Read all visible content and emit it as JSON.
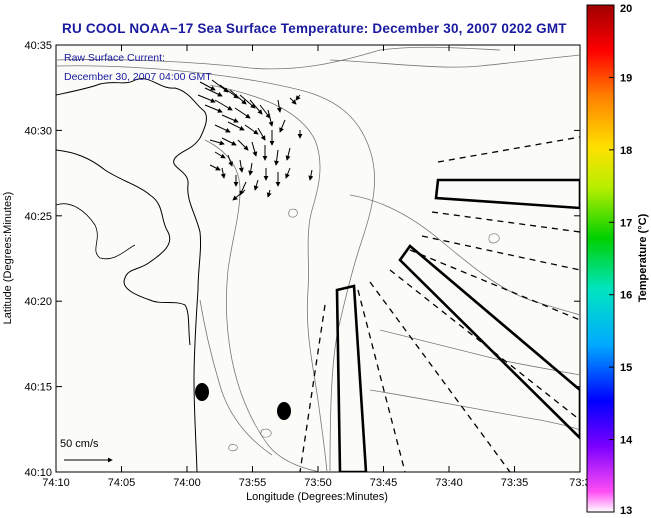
{
  "title": "RU COOL  NOAA−17  Sea Surface Temperature:  December 30, 2007 0202 GMT",
  "info": {
    "line1": "Raw Surface Current:",
    "line2": "December 30, 2007 04:00 GMT"
  },
  "axes": {
    "xlabel": "Longitude (Degrees:Minutes)",
    "ylabel": "Latitude (Degrees:Minutes)",
    "xticks": [
      "74:10",
      "74:05",
      "74:00",
      "73:55",
      "73:50",
      "73:45",
      "73:40",
      "73:35",
      "73:3"
    ],
    "yticks": [
      "40:35",
      "40:30",
      "40:25",
      "40:20",
      "40:15",
      "40:10"
    ]
  },
  "scale": {
    "label": "50 cm/s"
  },
  "colorbar": {
    "label": "Temperature (°C)",
    "ticks": [
      "20",
      "19",
      "18",
      "17",
      "16",
      "15",
      "14",
      "13"
    ],
    "min": 13,
    "max": 20,
    "colors": [
      "#ff4df5",
      "#7a00ff",
      "#0000ff",
      "#00aaff",
      "#00e5c0",
      "#00d000",
      "#b8ee00",
      "#ffe000",
      "#ff8000",
      "#ff0000",
      "#a00000"
    ]
  }
}
